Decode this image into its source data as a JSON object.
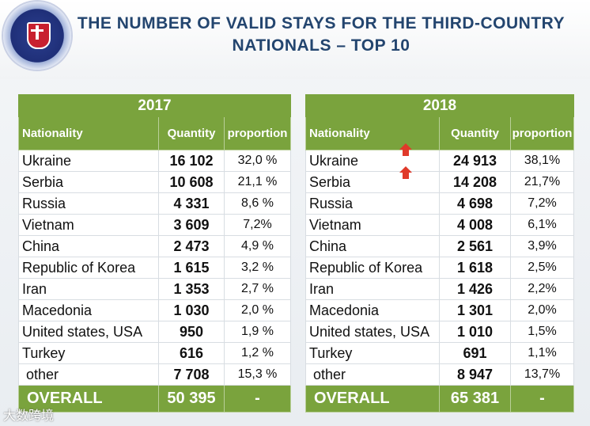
{
  "title": {
    "line1": "THE NUMBER OF VALID STAYS FOR THE THIRD-COUNTRY",
    "line2": "NATIONALS – TOP 10"
  },
  "tables": [
    {
      "year": "2017",
      "headers": {
        "nationality": "Nationality",
        "quantity": "Quantity",
        "proportion": "proportion"
      },
      "rows": [
        {
          "nationality": "Ukraine",
          "quantity": "16 102",
          "proportion": "32,0 %"
        },
        {
          "nationality": "Serbia",
          "quantity": "10 608",
          "proportion": "21,1 %"
        },
        {
          "nationality": "Russia",
          "quantity": "4 331",
          "proportion": "8,6 %"
        },
        {
          "nationality": "Vietnam",
          "quantity": "3 609",
          "proportion": "7,2%"
        },
        {
          "nationality": "China",
          "quantity": "2 473",
          "proportion": "4,9 %"
        },
        {
          "nationality": "Republic of Korea",
          "quantity": "1 615",
          "proportion": "3,2 %"
        },
        {
          "nationality": "Iran",
          "quantity": "1 353",
          "proportion": "2,7 %"
        },
        {
          "nationality": "Macedonia",
          "quantity": "1 030",
          "proportion": "2,0 %"
        },
        {
          "nationality": "United states, USA",
          "quantity": "950",
          "proportion": "1,9 %"
        },
        {
          "nationality": "Turkey",
          "quantity": "616",
          "proportion": "1,2 %"
        },
        {
          "nationality": "other",
          "quantity": "7 708",
          "proportion": "15,3 %"
        }
      ],
      "total": {
        "label": "OVERALL",
        "quantity": "50 395",
        "proportion": "-"
      }
    },
    {
      "year": "2018",
      "headers": {
        "nationality": "Nationality",
        "quantity": "Quantity",
        "proportion": "proportion"
      },
      "rows": [
        {
          "nationality": "Ukraine",
          "quantity": "24 913",
          "proportion": "38,1%"
        },
        {
          "nationality": "Serbia",
          "quantity": "14 208",
          "proportion": "21,7%"
        },
        {
          "nationality": "Russia",
          "quantity": "4 698",
          "proportion": "7,2%"
        },
        {
          "nationality": "Vietnam",
          "quantity": "4 008",
          "proportion": "6,1%"
        },
        {
          "nationality": "China",
          "quantity": "2 561",
          "proportion": "3,9%"
        },
        {
          "nationality": "Republic of Korea",
          "quantity": "1 618",
          "proportion": "2,5%"
        },
        {
          "nationality": "Iran",
          "quantity": "1 426",
          "proportion": "2,2%"
        },
        {
          "nationality": "Macedonia",
          "quantity": "1 301",
          "proportion": "2,0%"
        },
        {
          "nationality": "United states, USA",
          "quantity": "1 010",
          "proportion": "1,5%"
        },
        {
          "nationality": "Turkey",
          "quantity": "691",
          "proportion": "1,1%"
        },
        {
          "nationality": "other",
          "quantity": "8 947",
          "proportion": "13,7%"
        }
      ],
      "total": {
        "label": "OVERALL",
        "quantity": "65 381",
        "proportion": "-"
      }
    }
  ],
  "increase_arrows": {
    "icon": "up-arrow-icon",
    "color": "#e03a2a"
  },
  "watermark": "大数跨境",
  "colors": {
    "accent_green": "#7aa33d",
    "title_blue": "#23456f"
  }
}
